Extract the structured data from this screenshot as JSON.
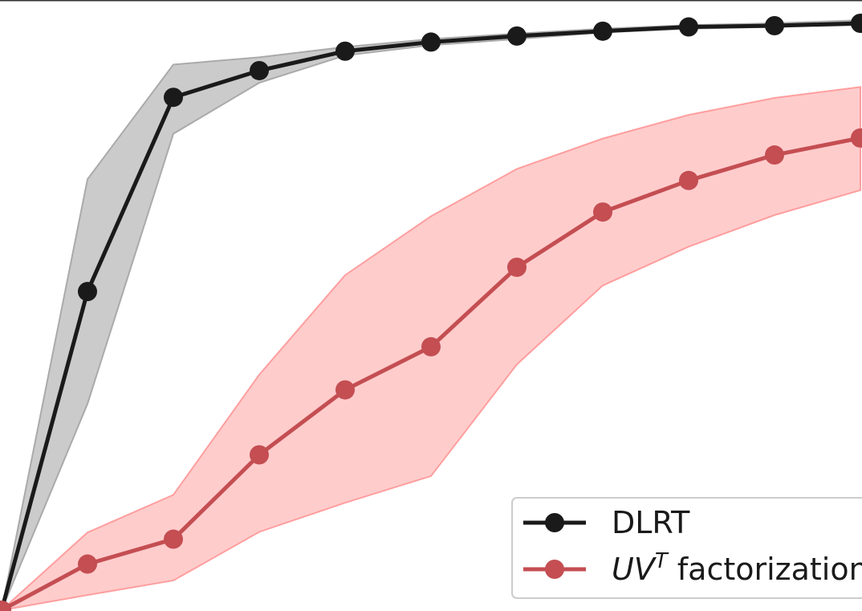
{
  "chart_data": {
    "type": "line",
    "title": "",
    "xlabel": "",
    "ylabel": "",
    "x": [
      0,
      1,
      2,
      3,
      4,
      5,
      6,
      7,
      8,
      9,
      10
    ],
    "xlim": [
      0,
      10
    ],
    "ylim": [
      0,
      1.0
    ],
    "grid": false,
    "legend": {
      "placement": "bottom-right"
    },
    "series": [
      {
        "name": "DLRT",
        "color": "#1a1a1a",
        "band_color": "#c8c8c8",
        "values": [
          0.0,
          0.525,
          0.845,
          0.889,
          0.921,
          0.936,
          0.946,
          0.954,
          0.961,
          0.963,
          0.967
        ],
        "lower": [
          0.0,
          0.34,
          0.785,
          0.869,
          0.914,
          0.931,
          0.941,
          0.952,
          0.958,
          0.961,
          0.964
        ],
        "upper": [
          0.0,
          0.71,
          0.899,
          0.911,
          0.928,
          0.941,
          0.95,
          0.958,
          0.964,
          0.967,
          0.972
        ]
      },
      {
        "name": "UV^T factorization",
        "name_parts": {
          "base": "UV",
          "sup": "T",
          "suffix": " factorization"
        },
        "color": "#c44e52",
        "band_color": "#ffc9c9",
        "values": [
          0.0,
          0.076,
          0.117,
          0.256,
          0.363,
          0.434,
          0.565,
          0.656,
          0.708,
          0.75,
          0.778
        ],
        "lower": [
          0.0,
          0.025,
          0.049,
          0.129,
          0.177,
          0.221,
          0.405,
          0.535,
          0.599,
          0.651,
          0.692
        ],
        "upper": [
          0.0,
          0.128,
          0.19,
          0.388,
          0.552,
          0.649,
          0.727,
          0.777,
          0.816,
          0.844,
          0.862
        ]
      }
    ]
  }
}
